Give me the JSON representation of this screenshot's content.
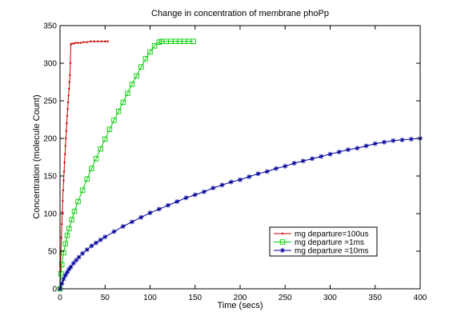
{
  "chart_data": {
    "type": "line",
    "title": "Change in concentration of membrane phoPp",
    "xlabel": "Time (secs)",
    "ylabel": "Concentration (molecule Count)",
    "xlim": [
      0,
      400
    ],
    "ylim": [
      0,
      350
    ],
    "xticks": [
      0,
      50,
      100,
      150,
      200,
      250,
      300,
      350,
      400
    ],
    "yticks": [
      0,
      50,
      100,
      150,
      200,
      250,
      300,
      350
    ],
    "grid": false,
    "legend_position": "lower-right",
    "series": [
      {
        "name": "mg departure=100us",
        "color": "#cc0000",
        "marker": "dot",
        "x": [
          0,
          0.5,
          1,
          1.5,
          2,
          2.5,
          3,
          3.5,
          4,
          4.5,
          5,
          5.5,
          6,
          6.5,
          7,
          7.5,
          8,
          8.5,
          9,
          9.5,
          10,
          10.5,
          11,
          11.5,
          12,
          13,
          15,
          17,
          20,
          23,
          26,
          30,
          34,
          38,
          42,
          46,
          50,
          53
        ],
        "y": [
          0,
          25,
          48,
          68,
          86,
          102,
          117,
          131,
          144,
          156,
          168,
          179,
          190,
          200,
          210,
          220,
          230,
          239,
          248,
          257,
          266,
          275,
          284,
          300,
          325,
          326,
          326,
          327,
          327,
          327,
          328,
          328,
          329,
          329,
          329,
          329,
          329,
          329
        ]
      },
      {
        "name": "mg departure =1ms",
        "color": "#00cc00",
        "marker": "square",
        "x": [
          0,
          1,
          2,
          4,
          6,
          8,
          10,
          13,
          16,
          20,
          25,
          30,
          35,
          40,
          45,
          50,
          55,
          60,
          65,
          70,
          75,
          80,
          85,
          90,
          95,
          100,
          105,
          110,
          113,
          118,
          123,
          128,
          133,
          138,
          143,
          148
        ],
        "y": [
          0,
          20,
          32,
          48,
          60,
          71,
          80,
          92,
          103,
          116,
          131,
          146,
          160,
          173,
          186,
          199,
          212,
          224,
          236,
          248,
          260,
          272,
          283,
          295,
          306,
          315,
          323,
          328,
          329,
          329,
          329,
          329,
          329,
          329,
          329,
          329
        ]
      },
      {
        "name": "mg departure =10ms",
        "color": "#000099",
        "marker": "star",
        "x": [
          0,
          2,
          4,
          6,
          8,
          10,
          12,
          15,
          18,
          21,
          25,
          30,
          35,
          40,
          45,
          50,
          60,
          70,
          80,
          90,
          100,
          110,
          120,
          130,
          140,
          150,
          160,
          170,
          180,
          190,
          200,
          210,
          220,
          230,
          240,
          250,
          260,
          270,
          280,
          290,
          300,
          310,
          320,
          330,
          340,
          350,
          360,
          370,
          380,
          390,
          400
        ],
        "y": [
          0,
          7,
          13,
          18,
          22,
          26,
          29,
          34,
          38,
          42,
          47,
          52,
          57,
          61,
          65,
          69,
          76,
          83,
          89,
          95,
          101,
          106,
          111,
          116,
          121,
          125,
          129,
          134,
          138,
          142,
          145,
          149,
          153,
          156,
          160,
          163,
          167,
          170,
          173,
          176,
          179,
          182,
          185,
          187,
          190,
          193,
          195,
          197,
          198,
          199,
          200
        ]
      }
    ]
  }
}
